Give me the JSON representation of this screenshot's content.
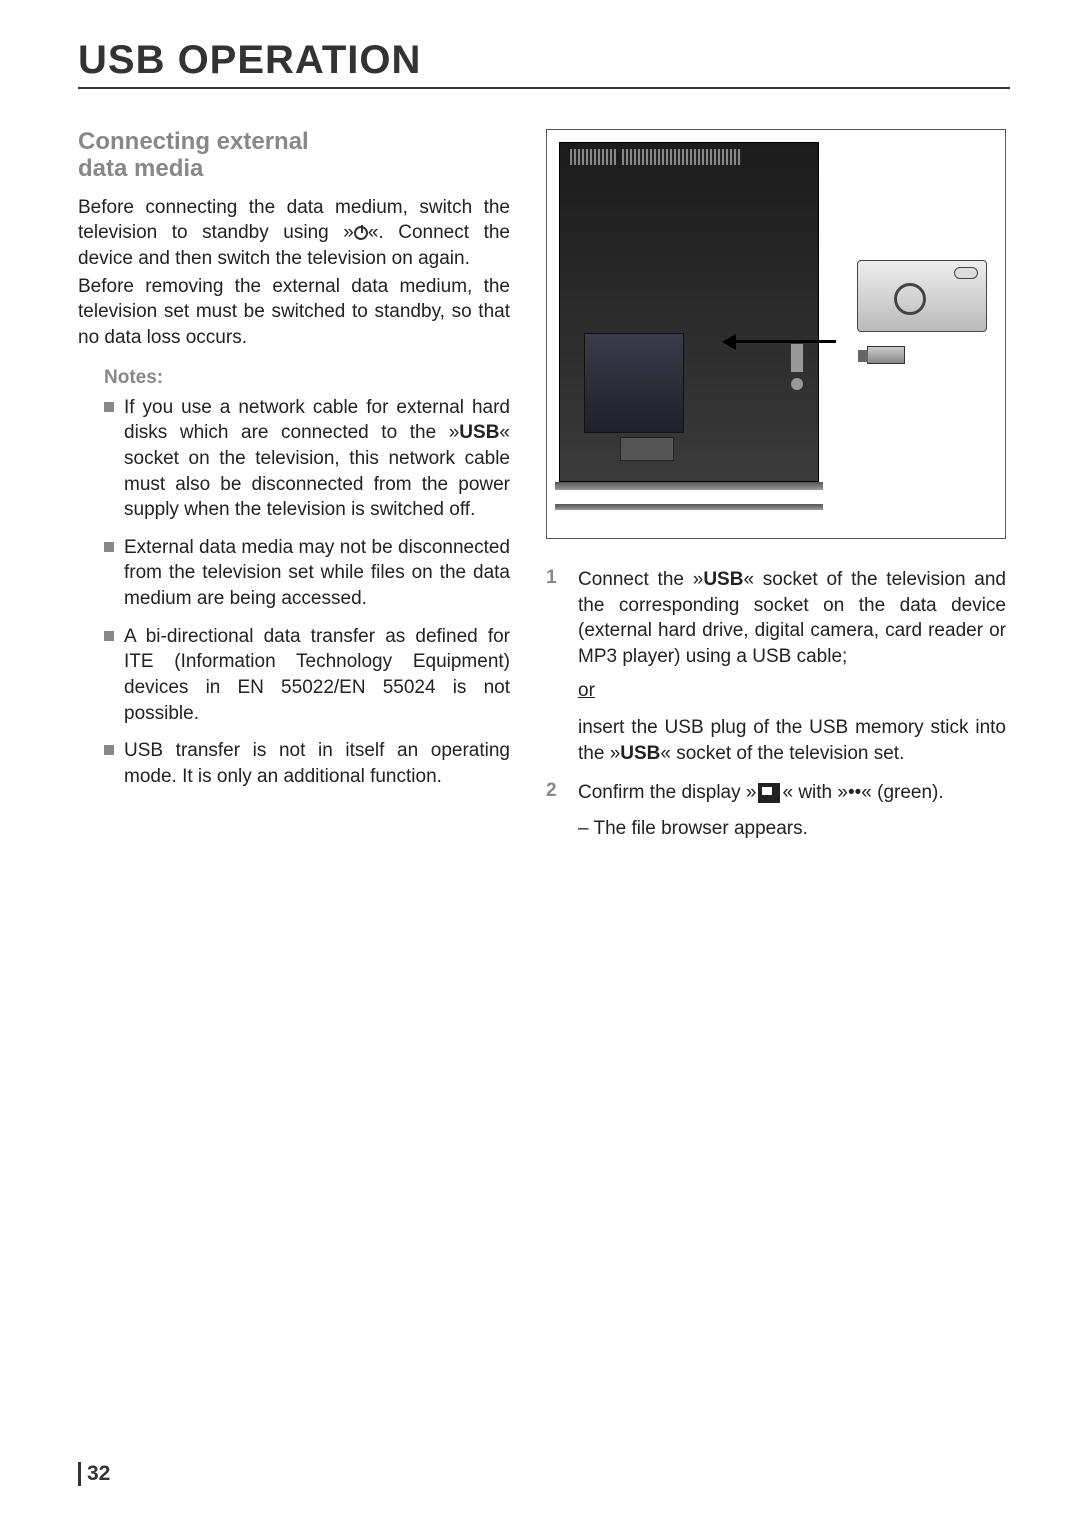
{
  "page": {
    "title": "USB OPERATION",
    "number": "32"
  },
  "left": {
    "heading_line1": "Connecting external",
    "heading_line2": "data media",
    "para1a": "Before connecting the data medium, switch the television to standby using »",
    "para1b": "«. Connect the device and then switch the television on again.",
    "para2": "Before removing the external data medium, the television set must be switched to standby, so that no data loss occurs.",
    "notes_label": "Notes:",
    "notes": [
      {
        "pre": "If you use a network cable for external hard disks which are connected to the »",
        "bold": "USB",
        "post": "« socket on the television, this network cable must also be disconnected from the power supply when the television is switched off."
      },
      {
        "text": "External data media may not be disconnected from the television set while files on the data medium are being accessed."
      },
      {
        "text": "A bi-directional data transfer as defined for ITE (Information Technology Equipment) devices in EN 55022/EN 55024 is not possible."
      },
      {
        "text": "USB transfer is not in itself an operating mode. It is only an additional function."
      }
    ]
  },
  "right": {
    "steps": [
      {
        "num": "1",
        "pre": "Connect the »",
        "bold": "USB",
        "post": "« socket of the television and the corresponding socket on the data device (external hard drive, digital camera, card reader or MP3 player) using a USB cable;",
        "or": "or",
        "alt_pre": "insert the USB plug of the USB memory stick into the »",
        "alt_bold": "USB",
        "alt_post": "« socket of the television set."
      },
      {
        "num": "2",
        "pre": "Confirm the display »",
        "post": "« with »",
        "dots": "••",
        "close": "« (green).",
        "sub": "– The file browser appears."
      }
    ]
  },
  "colors": {
    "heading_gray": "#888888",
    "text_color": "#222222",
    "border_color": "#333333"
  }
}
